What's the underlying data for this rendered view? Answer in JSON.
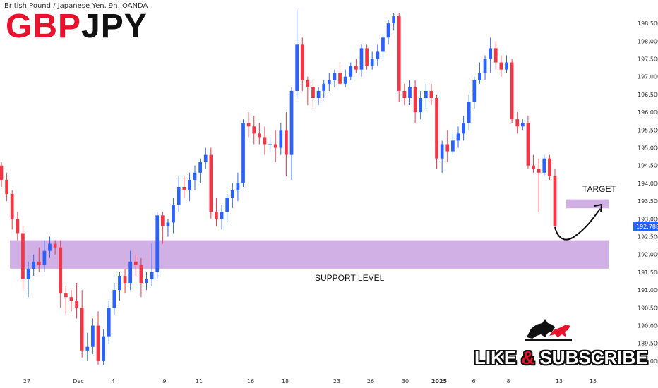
{
  "header": {
    "instrument_line": "British Pound / Japanese Yen, 9h, OANDA",
    "title_part1": "GBP",
    "title_part2": "JPY"
  },
  "annotations": {
    "target_label": "TARGET",
    "support_label": "SUPPORT LEVEL",
    "promo_part1": "LIKE ",
    "promo_amp": "&",
    "promo_part2": " SUBSCRIBE",
    "logo_icon": "bull-and-bear-icon"
  },
  "colors": {
    "up": "#2962ff",
    "down": "#f23645",
    "zone": "#c8a2e0",
    "price_tag": "#2962ff"
  },
  "chart_data": {
    "type": "candlestick",
    "title": "British Pound / Japanese Yen, 9h, OANDA",
    "ylim": [
      188.8,
      198.8
    ],
    "y_ticks": [
      "198.500",
      "198.000",
      "197.500",
      "197.000",
      "196.500",
      "196.000",
      "195.500",
      "195.000",
      "194.500",
      "194.000",
      "193.500",
      "193.000",
      "192.500",
      "192.000",
      "191.500",
      "191.000",
      "190.500",
      "190.000",
      "189.500",
      "189.000"
    ],
    "x_ticks": [
      "27",
      "Dec",
      "4",
      "9",
      "11",
      "16",
      "18",
      "2025",
      "23",
      "26",
      "30",
      "6",
      "8",
      "13",
      "15"
    ],
    "last_price": "192.788",
    "support_zone": [
      191.6,
      192.4
    ],
    "target_zone": [
      193.3,
      193.55
    ],
    "candles": [
      [
        194.5,
        194.6,
        193.9,
        194.1
      ],
      [
        194.1,
        194.3,
        193.5,
        193.7
      ],
      [
        193.7,
        193.8,
        192.7,
        193.0
      ],
      [
        193.0,
        193.2,
        192.4,
        192.6
      ],
      [
        192.6,
        192.8,
        191.0,
        191.3
      ],
      [
        191.3,
        191.8,
        190.8,
        191.6
      ],
      [
        191.6,
        192.0,
        191.4,
        191.8
      ],
      [
        191.8,
        192.2,
        191.5,
        191.7
      ],
      [
        191.7,
        192.4,
        191.5,
        192.1
      ],
      [
        192.1,
        192.5,
        191.9,
        192.3
      ],
      [
        192.3,
        192.4,
        192.0,
        192.2
      ],
      [
        192.2,
        192.4,
        190.5,
        190.9
      ],
      [
        190.9,
        191.1,
        190.3,
        190.8
      ],
      [
        190.8,
        191.0,
        190.4,
        190.7
      ],
      [
        190.7,
        191.2,
        190.2,
        190.5
      ],
      [
        190.5,
        191.0,
        189.1,
        189.3
      ],
      [
        189.3,
        189.8,
        189.0,
        189.4
      ],
      [
        189.4,
        190.2,
        189.2,
        190.0
      ],
      [
        190.0,
        190.4,
        188.9,
        189.0
      ],
      [
        189.0,
        189.9,
        188.9,
        189.7
      ],
      [
        189.7,
        190.7,
        189.5,
        190.5
      ],
      [
        190.5,
        191.2,
        190.3,
        191.0
      ],
      [
        191.0,
        191.5,
        190.7,
        191.4
      ],
      [
        191.4,
        191.6,
        190.9,
        191.2
      ],
      [
        191.2,
        192.1,
        191.0,
        191.8
      ],
      [
        191.8,
        192.0,
        191.4,
        191.7
      ],
      [
        191.7,
        191.9,
        190.8,
        191.2
      ],
      [
        191.2,
        191.5,
        191.0,
        191.3
      ],
      [
        191.3,
        192.3,
        191.1,
        191.5
      ],
      [
        191.5,
        193.2,
        191.3,
        193.1
      ],
      [
        193.1,
        193.2,
        192.3,
        192.8
      ],
      [
        192.8,
        193.0,
        192.5,
        192.9
      ],
      [
        192.9,
        193.6,
        192.6,
        193.4
      ],
      [
        193.4,
        194.2,
        193.2,
        193.9
      ],
      [
        193.9,
        194.2,
        193.6,
        193.8
      ],
      [
        193.8,
        194.3,
        193.5,
        194.1
      ],
      [
        194.1,
        194.5,
        193.8,
        194.3
      ],
      [
        194.3,
        194.7,
        194.0,
        194.6
      ],
      [
        194.6,
        195.0,
        194.4,
        194.8
      ],
      [
        194.8,
        195.0,
        193.0,
        193.2
      ],
      [
        193.2,
        193.6,
        192.8,
        193.0
      ],
      [
        193.0,
        193.4,
        192.7,
        193.2
      ],
      [
        193.2,
        193.7,
        192.9,
        193.6
      ],
      [
        193.6,
        194.0,
        193.3,
        193.8
      ],
      [
        193.8,
        194.3,
        193.5,
        194.0
      ],
      [
        194.0,
        195.8,
        193.9,
        195.7
      ],
      [
        195.7,
        196.0,
        195.3,
        195.6
      ],
      [
        195.6,
        195.9,
        195.1,
        195.4
      ],
      [
        195.4,
        195.7,
        195.1,
        195.3
      ],
      [
        195.3,
        195.6,
        194.8,
        195.1
      ],
      [
        195.1,
        195.3,
        194.9,
        195.1
      ],
      [
        195.1,
        195.5,
        194.6,
        195.0
      ],
      [
        195.0,
        195.7,
        194.8,
        195.5
      ],
      [
        195.5,
        196.0,
        194.2,
        194.8
      ],
      [
        194.8,
        196.7,
        194.1,
        196.6
      ],
      [
        196.6,
        198.9,
        196.4,
        197.9
      ],
      [
        197.9,
        198.1,
        196.6,
        196.9
      ],
      [
        196.9,
        197.0,
        196.2,
        196.7
      ],
      [
        196.7,
        196.9,
        196.1,
        196.4
      ],
      [
        196.4,
        196.7,
        196.2,
        196.6
      ],
      [
        196.6,
        196.9,
        196.4,
        196.8
      ],
      [
        196.8,
        197.1,
        196.6,
        196.9
      ],
      [
        196.9,
        197.2,
        196.7,
        197.1
      ],
      [
        197.1,
        197.4,
        196.8,
        196.8
      ],
      [
        196.8,
        197.2,
        196.7,
        197.0
      ],
      [
        197.0,
        197.4,
        196.9,
        197.3
      ],
      [
        197.3,
        197.5,
        197.1,
        197.2
      ],
      [
        197.2,
        197.9,
        197.0,
        197.8
      ],
      [
        197.8,
        197.9,
        197.2,
        197.3
      ],
      [
        197.3,
        197.7,
        197.2,
        197.5
      ],
      [
        197.5,
        197.9,
        197.3,
        197.7
      ],
      [
        197.7,
        198.2,
        197.5,
        198.1
      ],
      [
        198.1,
        198.6,
        197.9,
        198.5
      ],
      [
        198.5,
        198.8,
        198.3,
        198.7
      ],
      [
        198.7,
        198.8,
        196.3,
        196.6
      ],
      [
        196.6,
        196.8,
        196.2,
        196.4
      ],
      [
        196.4,
        196.9,
        196.2,
        196.7
      ],
      [
        196.7,
        196.9,
        195.7,
        196.0
      ],
      [
        196.0,
        196.6,
        195.8,
        196.4
      ],
      [
        196.4,
        196.8,
        196.1,
        196.6
      ],
      [
        196.6,
        196.8,
        196.2,
        196.4
      ],
      [
        196.4,
        196.5,
        194.4,
        194.7
      ],
      [
        194.7,
        195.2,
        194.3,
        195.1
      ],
      [
        195.1,
        195.5,
        194.6,
        194.9
      ],
      [
        194.9,
        195.4,
        194.8,
        195.2
      ],
      [
        195.2,
        195.6,
        195.0,
        195.4
      ],
      [
        195.4,
        195.9,
        195.2,
        195.7
      ],
      [
        195.7,
        196.5,
        195.5,
        196.3
      ],
      [
        196.3,
        197.0,
        196.1,
        196.9
      ],
      [
        196.9,
        197.4,
        196.8,
        197.1
      ],
      [
        197.1,
        197.6,
        196.9,
        197.5
      ],
      [
        197.5,
        198.1,
        197.1,
        197.8
      ],
      [
        197.8,
        198.0,
        197.2,
        197.4
      ],
      [
        197.4,
        197.6,
        197.0,
        197.2
      ],
      [
        197.2,
        197.6,
        197.1,
        197.4
      ],
      [
        197.4,
        197.5,
        195.7,
        195.8
      ],
      [
        195.8,
        196.0,
        195.4,
        195.6
      ],
      [
        195.6,
        195.8,
        195.5,
        195.7
      ],
      [
        195.7,
        195.9,
        194.4,
        194.5
      ],
      [
        194.5,
        194.8,
        194.3,
        194.4
      ],
      [
        194.4,
        194.7,
        193.2,
        194.3
      ],
      [
        194.3,
        194.8,
        194.2,
        194.7
      ],
      [
        194.7,
        194.8,
        194.1,
        194.2
      ],
      [
        194.2,
        194.4,
        192.7,
        192.8
      ]
    ]
  }
}
